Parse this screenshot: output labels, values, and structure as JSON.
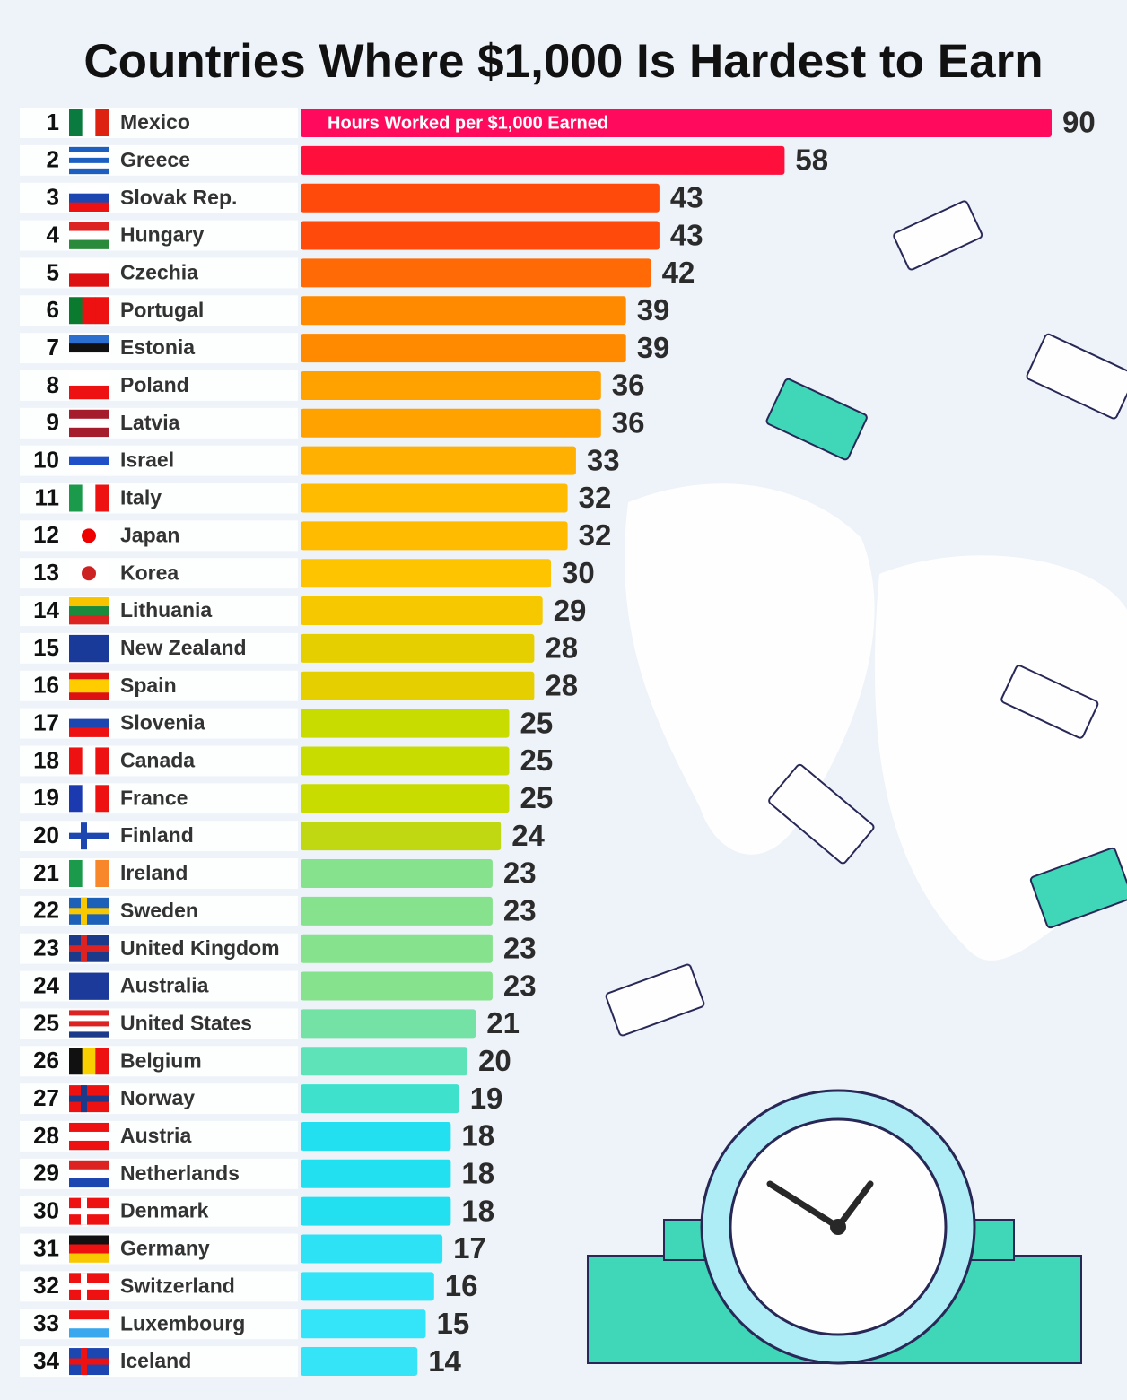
{
  "chart_data": {
    "type": "bar",
    "orientation": "horizontal",
    "title": "Countries Where $1,000 Is Hardest to Earn",
    "axis_label": "Hours Worked per $1,000 Earned",
    "ranks": [
      1,
      2,
      3,
      4,
      5,
      6,
      7,
      8,
      9,
      10,
      11,
      12,
      13,
      14,
      15,
      16,
      17,
      18,
      19,
      20,
      21,
      22,
      23,
      24,
      25,
      26,
      27,
      28,
      29,
      30,
      31,
      32,
      33,
      34
    ],
    "categories": [
      "Mexico",
      "Greece",
      "Slovak Rep.",
      "Hungary",
      "Czechia",
      "Portugal",
      "Estonia",
      "Poland",
      "Latvia",
      "Israel",
      "Italy",
      "Japan",
      "Korea",
      "Lithuania",
      "New Zealand",
      "Spain",
      "Slovenia",
      "Canada",
      "France",
      "Finland",
      "Ireland",
      "Sweden",
      "United Kingdom",
      "Australia",
      "United States",
      "Belgium",
      "Norway",
      "Austria",
      "Netherlands",
      "Denmark",
      "Germany",
      "Switzerland",
      "Luxembourg",
      "Iceland"
    ],
    "values": [
      90,
      58,
      43,
      43,
      42,
      39,
      39,
      36,
      36,
      33,
      32,
      32,
      30,
      29,
      28,
      28,
      25,
      25,
      25,
      24,
      23,
      23,
      23,
      23,
      21,
      20,
      19,
      18,
      18,
      18,
      17,
      16,
      15,
      14
    ],
    "colors": [
      "#ff0a5c",
      "#ff0f3c",
      "#ff4a0c",
      "#ff4a0c",
      "#ff6a06",
      "#ff8a00",
      "#ff8a00",
      "#ffa200",
      "#ffa200",
      "#ffb000",
      "#ffbb00",
      "#ffbb00",
      "#ffc400",
      "#f5c800",
      "#e6cf00",
      "#e6cf00",
      "#c8dc00",
      "#c8dc00",
      "#c8dc00",
      "#c0d812",
      "#86e28c",
      "#86e28c",
      "#86e28c",
      "#86e28c",
      "#74e2a4",
      "#5ee2b8",
      "#3ee2cc",
      "#22e0f0",
      "#22e0f0",
      "#22e0f0",
      "#2ee2f6",
      "#32e4f8",
      "#34e4f8",
      "#36e4f8"
    ],
    "xlim": [
      0,
      90
    ]
  }
}
